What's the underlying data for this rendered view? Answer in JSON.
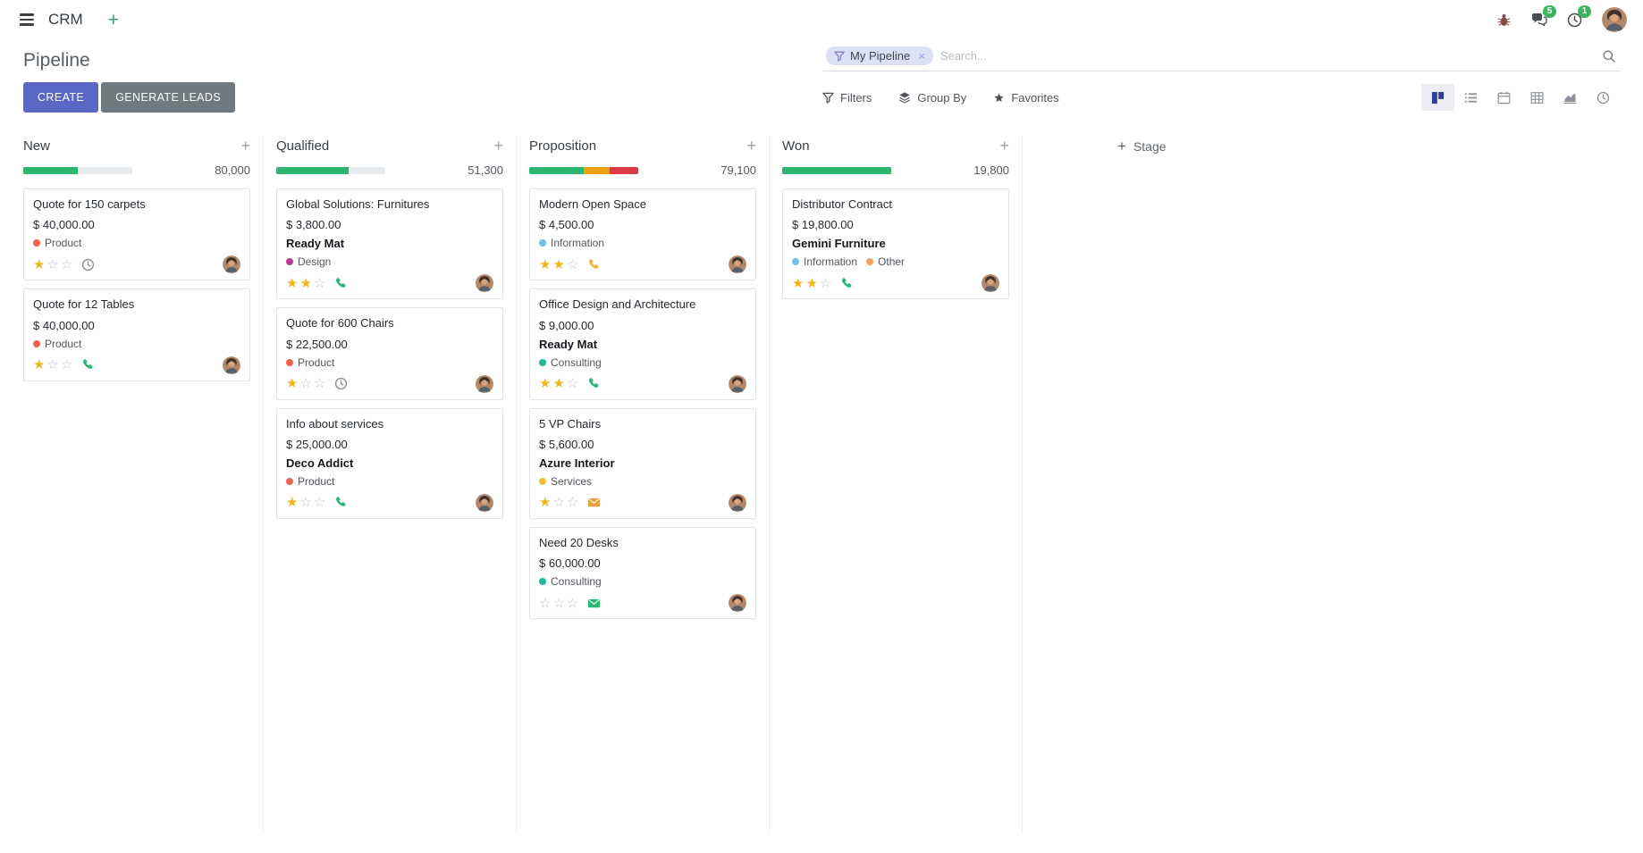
{
  "navbar": {
    "app_name": "CRM",
    "message_badge": "5",
    "activity_badge": "1"
  },
  "control_panel": {
    "title": "Pipeline",
    "create_label": "CREATE",
    "generate_leads_label": "GENERATE LEADS",
    "filters_label": "Filters",
    "group_by_label": "Group By",
    "favorites_label": "Favorites",
    "search": {
      "facet_label": "My Pipeline",
      "remove_facet": "×",
      "placeholder": "Search..."
    }
  },
  "theme": {
    "primary_button": "#5a67c5",
    "secondary_button": "#717980",
    "progress_green": "#2bb673",
    "progress_orange": "#f0a10c",
    "progress_red": "#dc3b45",
    "star_filled": "#f2b51d",
    "facet_bg": "#dde1f6",
    "badge_green": "#3db35f"
  },
  "kanban": {
    "add_stage_label": "Stage",
    "columns": [
      {
        "name": "New",
        "total": "80,000",
        "progress": [
          {
            "color": "#2bb673",
            "pct": 50
          }
        ],
        "cards": [
          {
            "title": "Quote for 150 carpets",
            "amount": "$ 40,000.00",
            "partner": "",
            "tags": [
              {
                "label": "Product",
                "color": "#f06050"
              }
            ],
            "stars": 1,
            "activity": {
              "icon": "clock",
              "color": "#8a9097"
            }
          },
          {
            "title": "Quote for 12 Tables",
            "amount": "$ 40,000.00",
            "partner": "",
            "tags": [
              {
                "label": "Product",
                "color": "#f06050"
              }
            ],
            "stars": 1,
            "activity": {
              "icon": "phone",
              "color": "#2bb673"
            }
          }
        ]
      },
      {
        "name": "Qualified",
        "total": "51,300",
        "progress": [
          {
            "color": "#2bb673",
            "pct": 66
          }
        ],
        "cards": [
          {
            "title": "Global Solutions: Furnitures",
            "amount": "$ 3,800.00",
            "partner": "Ready Mat",
            "tags": [
              {
                "label": "Design",
                "color": "#c13a8c"
              }
            ],
            "stars": 2,
            "activity": {
              "icon": "phone",
              "color": "#2bb673"
            }
          },
          {
            "title": "Quote for 600 Chairs",
            "amount": "$ 22,500.00",
            "partner": "",
            "tags": [
              {
                "label": "Product",
                "color": "#f06050"
              }
            ],
            "stars": 1,
            "activity": {
              "icon": "clock",
              "color": "#8a9097"
            }
          },
          {
            "title": "Info about services",
            "amount": "$ 25,000.00",
            "partner": "Deco Addict",
            "tags": [
              {
                "label": "Product",
                "color": "#f06050"
              }
            ],
            "stars": 1,
            "activity": {
              "icon": "phone",
              "color": "#2bb673"
            }
          }
        ]
      },
      {
        "name": "Proposition",
        "total": "79,100",
        "progress": [
          {
            "color": "#2bb673",
            "pct": 50
          },
          {
            "color": "#f0a10c",
            "pct": 24
          },
          {
            "color": "#dc3b45",
            "pct": 26
          }
        ],
        "cards": [
          {
            "title": "Modern Open Space",
            "amount": "$ 4,500.00",
            "partner": "",
            "tags": [
              {
                "label": "Information",
                "color": "#6cc1ed"
              }
            ],
            "stars": 2,
            "activity": {
              "icon": "phone",
              "color": "#efb440"
            }
          },
          {
            "title": "Office Design and Architecture",
            "amount": "$ 9,000.00",
            "partner": "Ready Mat",
            "tags": [
              {
                "label": "Consulting",
                "color": "#21b799"
              }
            ],
            "stars": 2,
            "activity": {
              "icon": "phone",
              "color": "#2bb673"
            }
          },
          {
            "title": "5 VP Chairs",
            "amount": "$ 5,600.00",
            "partner": "Azure Interior",
            "tags": [
              {
                "label": "Services",
                "color": "#efc235"
              }
            ],
            "stars": 1,
            "activity": {
              "icon": "envelope",
              "color": "#e9a23b"
            }
          },
          {
            "title": "Need 20 Desks",
            "amount": "$ 60,000.00",
            "partner": "",
            "tags": [
              {
                "label": "Consulting",
                "color": "#21b799"
              }
            ],
            "stars": 0,
            "activity": {
              "icon": "envelope",
              "color": "#2bb673"
            }
          }
        ]
      },
      {
        "name": "Won",
        "total": "19,800",
        "progress": [
          {
            "color": "#2bb673",
            "pct": 100
          }
        ],
        "cards": [
          {
            "title": "Distributor Contract",
            "amount": "$ 19,800.00",
            "partner": "Gemini Furniture",
            "tags": [
              {
                "label": "Information",
                "color": "#6cc1ed"
              },
              {
                "label": "Other",
                "color": "#f4a460"
              }
            ],
            "stars": 2,
            "activity": {
              "icon": "phone",
              "color": "#2bb673"
            }
          }
        ]
      }
    ]
  }
}
